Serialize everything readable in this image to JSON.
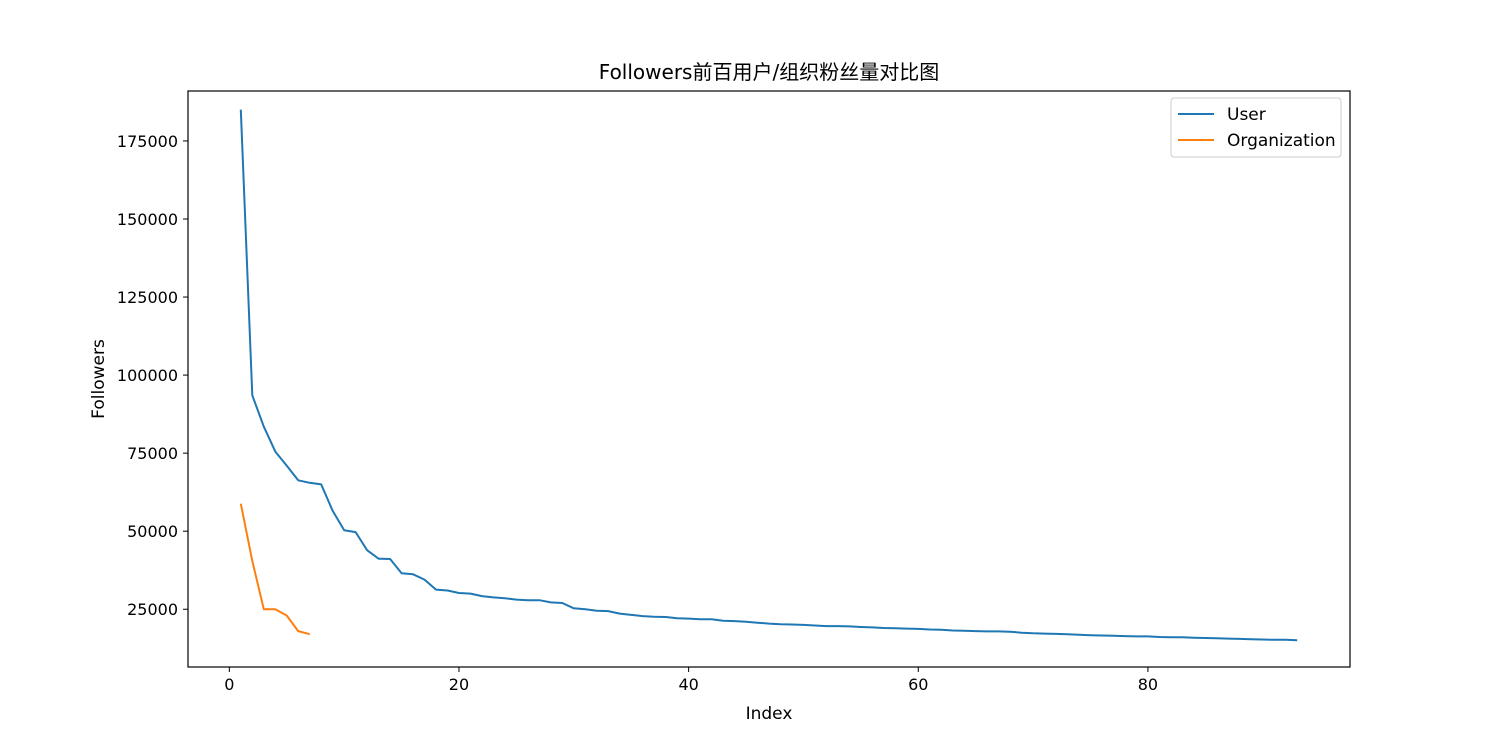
{
  "chart_data": {
    "type": "line",
    "title": "Followers前百用户/组织粉丝量对比图",
    "xlabel": "Index",
    "ylabel": "Followers",
    "xlim": [
      -3.6,
      97.6
    ],
    "ylim": [
      6500,
      191000
    ],
    "xticks": [
      0,
      20,
      40,
      60,
      80
    ],
    "yticks": [
      25000,
      50000,
      75000,
      100000,
      125000,
      150000,
      175000
    ],
    "grid": false,
    "legend_position": "top-right",
    "series": [
      {
        "name": "User",
        "color": "#1f77b4",
        "x": [
          1,
          2,
          3,
          4,
          5,
          6,
          7,
          8,
          9,
          10,
          11,
          12,
          13,
          14,
          15,
          16,
          17,
          18,
          19,
          20,
          21,
          22,
          23,
          24,
          25,
          26,
          27,
          28,
          29,
          30,
          31,
          32,
          33,
          34,
          35,
          36,
          37,
          38,
          39,
          40,
          41,
          42,
          43,
          44,
          45,
          46,
          47,
          48,
          49,
          50,
          51,
          52,
          53,
          54,
          55,
          56,
          57,
          58,
          59,
          60,
          61,
          62,
          63,
          64,
          65,
          66,
          67,
          68,
          69,
          70,
          71,
          72,
          73,
          74,
          75,
          76,
          77,
          78,
          79,
          80,
          81,
          82,
          83,
          84,
          85,
          86,
          87,
          88,
          89,
          90,
          91,
          92,
          93
        ],
        "values": [
          185000,
          93500,
          83500,
          75500,
          71000,
          66300,
          65500,
          65000,
          56500,
          50300,
          49700,
          43900,
          41200,
          41100,
          36500,
          36200,
          34500,
          31300,
          31000,
          30200,
          30000,
          29200,
          28800,
          28500,
          28100,
          27900,
          27900,
          27200,
          27000,
          25300,
          25000,
          24500,
          24400,
          23600,
          23200,
          22800,
          22600,
          22500,
          22100,
          22000,
          21800,
          21800,
          21300,
          21200,
          21000,
          20700,
          20400,
          20200,
          20100,
          20000,
          19800,
          19600,
          19600,
          19500,
          19300,
          19200,
          19000,
          18900,
          18800,
          18700,
          18500,
          18400,
          18200,
          18100,
          18000,
          17900,
          17900,
          17800,
          17500,
          17300,
          17200,
          17100,
          17000,
          16800,
          16700,
          16600,
          16500,
          16400,
          16300,
          16300,
          16100,
          16000,
          16000,
          15900,
          15800,
          15700,
          15600,
          15500,
          15400,
          15300,
          15200,
          15200,
          15100
        ]
      },
      {
        "name": "Organization",
        "color": "#ff7f0e",
        "x": [
          1,
          2,
          3,
          4,
          5,
          6,
          7
        ],
        "values": [
          58800,
          40500,
          25000,
          25000,
          23000,
          18000,
          17000
        ]
      }
    ]
  }
}
